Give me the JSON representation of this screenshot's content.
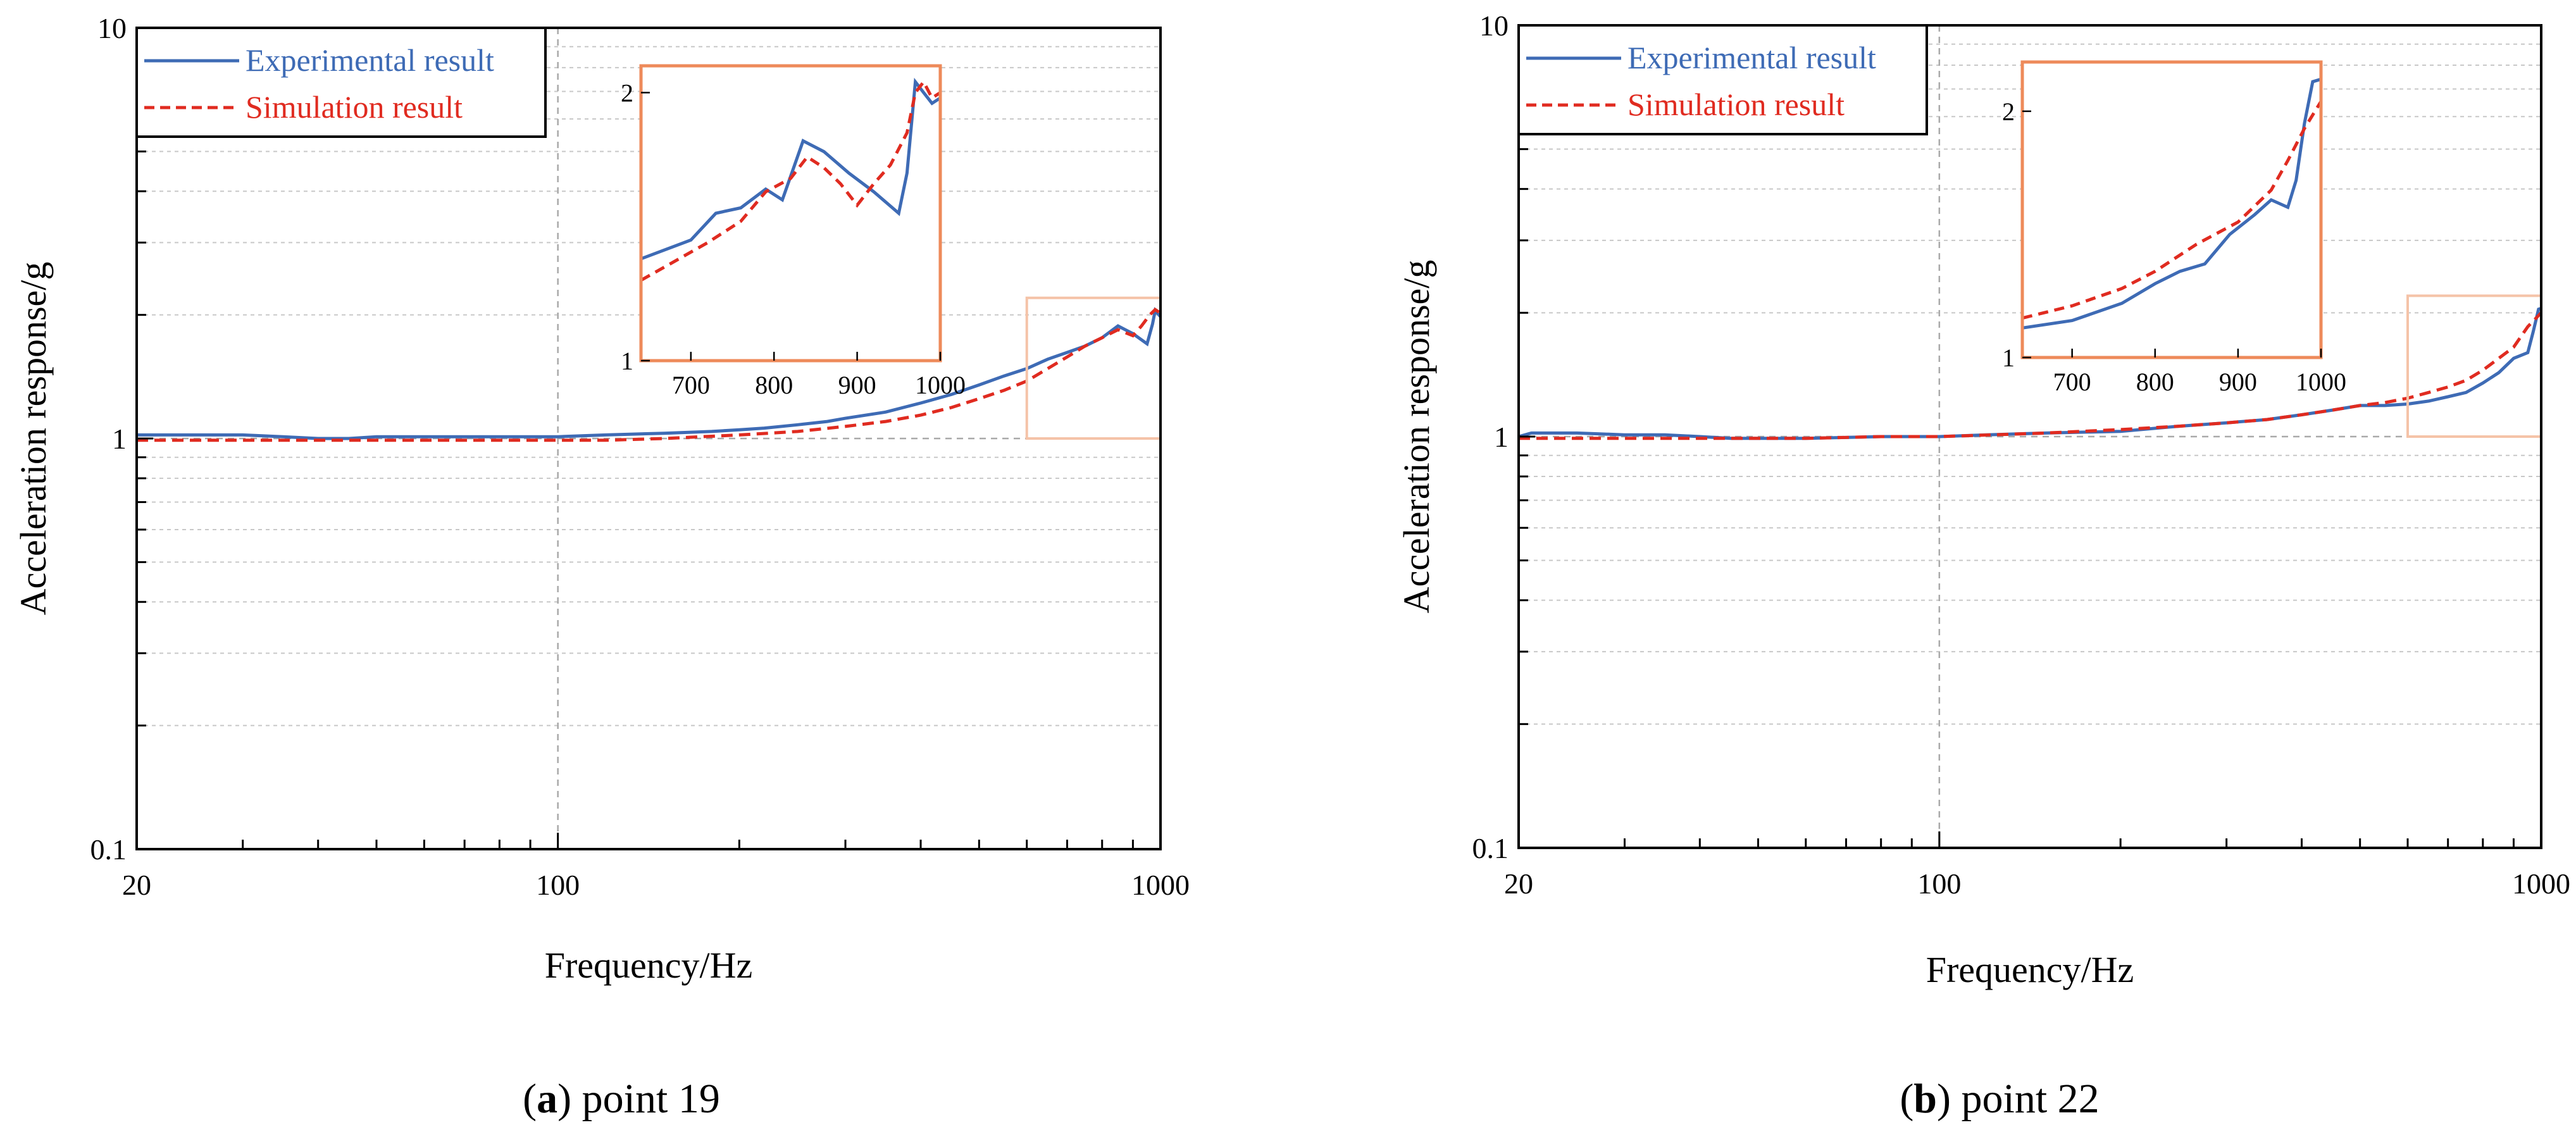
{
  "colors": {
    "experimental": "#3E6BB5",
    "simulation": "#E02B20",
    "inset_frame": "#EE8A5A",
    "zoom_box": "#F5C3A8",
    "grid": "#C8C8C8",
    "axis": "#000000"
  },
  "chart_data": [
    {
      "id": "a",
      "type": "line",
      "caption": {
        "letter": "a",
        "text": " point 19"
      },
      "xlabel": "Frequency/Hz",
      "ylabel": "Acceleration response/g",
      "xscale": "log",
      "yscale": "log",
      "xlim": [
        20,
        1000
      ],
      "ylim": [
        0.1,
        10
      ],
      "xticks": [
        {
          "value": 20,
          "label": "20"
        },
        {
          "value": 100,
          "label": "100"
        },
        {
          "value": 1000,
          "label": "1000"
        }
      ],
      "yticks": [
        {
          "value": 0.1,
          "label": "0.1"
        },
        {
          "value": 1,
          "label": "1"
        },
        {
          "value": 10,
          "label": "10"
        }
      ],
      "grid": "minor horizontal + decade reference lines",
      "legend": {
        "placement": "top-left",
        "entries": [
          "Experimental result",
          "Simulation result"
        ]
      },
      "series": [
        {
          "name": "Experimental result",
          "style": "solid",
          "x": [
            20,
            25,
            30,
            35,
            40,
            45,
            50,
            60,
            70,
            80,
            90,
            100,
            120,
            150,
            180,
            200,
            220,
            250,
            280,
            300,
            350,
            400,
            450,
            500,
            550,
            600,
            650,
            700,
            750,
            800,
            850,
            900,
            950,
            970,
            980,
            1000
          ],
          "y": [
            1.02,
            1.02,
            1.02,
            1.01,
            1.0,
            1.0,
            1.01,
            1.01,
            1.01,
            1.01,
            1.01,
            1.01,
            1.02,
            1.03,
            1.04,
            1.05,
            1.06,
            1.08,
            1.1,
            1.12,
            1.16,
            1.22,
            1.28,
            1.35,
            1.42,
            1.48,
            1.56,
            1.62,
            1.68,
            1.76,
            1.88,
            1.8,
            1.7,
            1.9,
            2.05,
            1.98
          ]
        },
        {
          "name": "Simulation result",
          "style": "dashed",
          "x": [
            20,
            30,
            40,
            50,
            60,
            80,
            100,
            120,
            150,
            200,
            250,
            300,
            350,
            400,
            450,
            500,
            550,
            600,
            650,
            700,
            750,
            800,
            850,
            900,
            930,
            960,
            980,
            1000
          ],
          "y": [
            0.99,
            0.99,
            0.99,
            0.99,
            0.99,
            0.99,
            0.99,
            0.99,
            1.0,
            1.02,
            1.04,
            1.07,
            1.1,
            1.14,
            1.19,
            1.25,
            1.31,
            1.38,
            1.48,
            1.58,
            1.68,
            1.76,
            1.84,
            1.78,
            1.88,
            2.0,
            2.06,
            2.02
          ]
        }
      ],
      "inset": {
        "xlim": [
          640,
          1000
        ],
        "ylim": [
          1,
          2.1
        ],
        "xticks": [
          {
            "value": 700,
            "label": "700"
          },
          {
            "value": 800,
            "label": "800"
          },
          {
            "value": 900,
            "label": "900"
          },
          {
            "value": 1000,
            "label": "1000"
          }
        ],
        "yticks": [
          {
            "value": 1,
            "label": "1"
          },
          {
            "value": 2,
            "label": "2"
          }
        ],
        "zoom_region": {
          "x": [
            600,
            1000
          ],
          "y": [
            1,
            2.2
          ]
        },
        "series": [
          {
            "name": "Experimental result",
            "x": [
              640,
              700,
              730,
              760,
              790,
              810,
              835,
              860,
              890,
              920,
              950,
              960,
              970,
              980,
              990,
              1000
            ],
            "y": [
              1.38,
              1.45,
              1.55,
              1.57,
              1.64,
              1.6,
              1.82,
              1.78,
              1.7,
              1.63,
              1.55,
              1.7,
              2.04,
              2.0,
              1.96,
              1.98
            ]
          },
          {
            "name": "Simulation result",
            "x": [
              640,
              680,
              720,
              760,
              790,
              820,
              840,
              860,
              880,
              900,
              920,
              940,
              960,
              970,
              980,
              990,
              1000
            ],
            "y": [
              1.3,
              1.37,
              1.44,
              1.52,
              1.63,
              1.68,
              1.76,
              1.72,
              1.66,
              1.58,
              1.66,
              1.73,
              1.85,
              2.0,
              2.04,
              1.98,
              2.0
            ]
          }
        ]
      }
    },
    {
      "id": "b",
      "type": "line",
      "caption": {
        "letter": "b",
        "text": " point 22"
      },
      "xlabel": "Frequency/Hz",
      "ylabel": "Acceleration response/g",
      "xscale": "log",
      "yscale": "log",
      "xlim": [
        20,
        1000
      ],
      "ylim": [
        0.1,
        10
      ],
      "xticks": [
        {
          "value": 20,
          "label": "20"
        },
        {
          "value": 100,
          "label": "100"
        },
        {
          "value": 1000,
          "label": "1000"
        }
      ],
      "yticks": [
        {
          "value": 0.1,
          "label": "0.1"
        },
        {
          "value": 1,
          "label": "1"
        },
        {
          "value": 10,
          "label": "10"
        }
      ],
      "grid": "minor horizontal + decade reference lines",
      "legend": {
        "placement": "top-left",
        "entries": [
          "Experimental result",
          "Simulation result"
        ]
      },
      "series": [
        {
          "name": "Experimental result",
          "style": "solid",
          "x": [
            20,
            21,
            25,
            30,
            35,
            40,
            45,
            50,
            60,
            80,
            100,
            120,
            150,
            200,
            250,
            300,
            350,
            400,
            450,
            500,
            550,
            600,
            650,
            700,
            750,
            800,
            850,
            900,
            950,
            970,
            990,
            1000
          ],
          "y": [
            1.0,
            1.02,
            1.02,
            1.01,
            1.01,
            1.0,
            0.99,
            0.99,
            0.99,
            1.0,
            1.0,
            1.01,
            1.02,
            1.03,
            1.06,
            1.08,
            1.1,
            1.13,
            1.16,
            1.19,
            1.19,
            1.2,
            1.22,
            1.25,
            1.28,
            1.35,
            1.43,
            1.55,
            1.6,
            1.8,
            2.04,
            2.05
          ]
        },
        {
          "name": "Simulation result",
          "style": "dashed",
          "x": [
            20,
            30,
            40,
            50,
            60,
            80,
            100,
            150,
            200,
            250,
            300,
            350,
            400,
            450,
            500,
            550,
            600,
            650,
            700,
            750,
            800,
            850,
            900,
            950,
            1000
          ],
          "y": [
            0.99,
            0.99,
            0.99,
            0.99,
            0.99,
            1.0,
            1.0,
            1.02,
            1.04,
            1.06,
            1.08,
            1.1,
            1.13,
            1.16,
            1.19,
            1.21,
            1.24,
            1.28,
            1.32,
            1.37,
            1.45,
            1.55,
            1.65,
            1.85,
            2.0
          ]
        }
      ],
      "inset": {
        "xlim": [
          640,
          1000
        ],
        "ylim": [
          1,
          2.2
        ],
        "xticks": [
          {
            "value": 700,
            "label": "700"
          },
          {
            "value": 800,
            "label": "800"
          },
          {
            "value": 900,
            "label": "900"
          },
          {
            "value": 1000,
            "label": "1000"
          }
        ],
        "yticks": [
          {
            "value": 1,
            "label": "1"
          },
          {
            "value": 2,
            "label": "2"
          }
        ],
        "zoom_region": {
          "x": [
            600,
            1000
          ],
          "y": [
            1,
            2.2
          ]
        },
        "series": [
          {
            "name": "Experimental result",
            "x": [
              640,
              700,
              760,
              800,
              830,
              860,
              890,
              920,
              940,
              960,
              970,
              980,
              990,
              1000
            ],
            "y": [
              1.12,
              1.15,
              1.22,
              1.3,
              1.35,
              1.38,
              1.5,
              1.58,
              1.64,
              1.61,
              1.72,
              1.95,
              2.12,
              2.13
            ]
          },
          {
            "name": "Simulation result",
            "x": [
              640,
              700,
              760,
              800,
              850,
              900,
              940,
              960,
              980,
              1000
            ],
            "y": [
              1.16,
              1.21,
              1.28,
              1.35,
              1.46,
              1.55,
              1.68,
              1.8,
              1.93,
              2.04
            ]
          }
        ]
      }
    }
  ]
}
